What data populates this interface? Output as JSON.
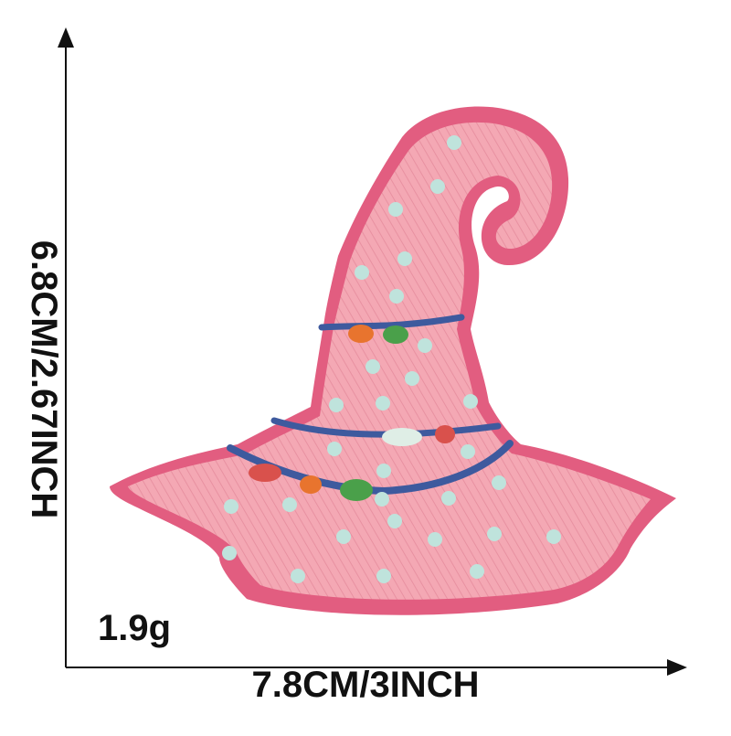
{
  "product": {
    "name": "",
    "dimensions": {
      "width_label": "7.8CM/3INCH",
      "height_label": "6.8CM/2.67INCH"
    },
    "weight_label": "1.9g"
  },
  "colors": {
    "hat_fill": "#f4a8b4",
    "hat_border": "#e25d80",
    "polka_dots": "#bfe3dc",
    "band": "#3e5a9e",
    "bead_orange": "#e8742e",
    "bead_green": "#4aa04a",
    "bead_red": "#d9514c",
    "bead_white": "#dfeee6",
    "axis": "#111111"
  }
}
